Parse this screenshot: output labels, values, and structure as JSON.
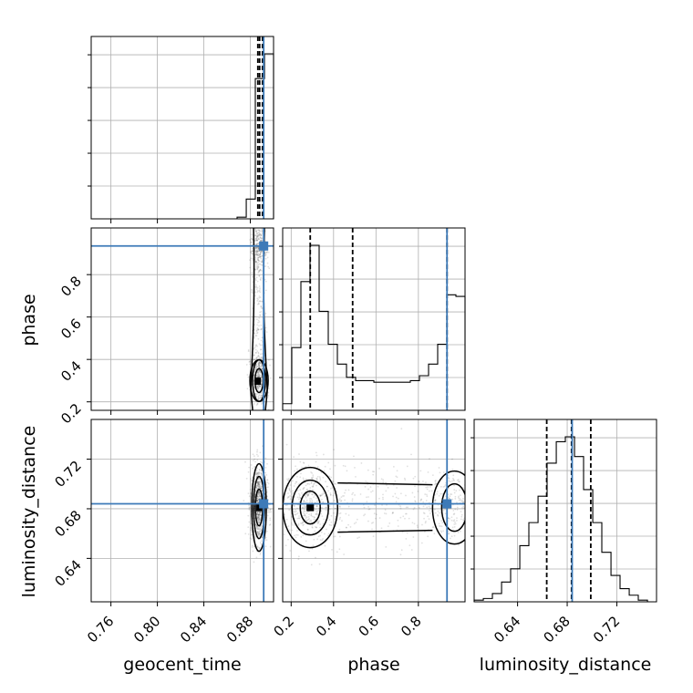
{
  "chart_data": {
    "type": "corner",
    "parameters": [
      "geocent_time",
      "phase",
      "luminosity_distance"
    ],
    "axes": {
      "geocent_time": {
        "range": [
          0.743,
          0.9
        ],
        "ticks": [
          0.76,
          0.8,
          0.84,
          0.88
        ],
        "tick_labels": [
          "0.76",
          "0.80",
          "0.84",
          "0.88"
        ]
      },
      "phase": {
        "range": [
          0.16,
          1.02
        ],
        "ticks": [
          0.2,
          0.4,
          0.6,
          0.8
        ],
        "tick_labels": [
          "0.2",
          "0.4",
          "0.6",
          "0.8"
        ]
      },
      "luminosity_distance": {
        "range": [
          0.605,
          0.752
        ],
        "ticks": [
          0.64,
          0.68,
          0.72
        ],
        "tick_labels": [
          "0.64",
          "0.68",
          "0.72"
        ]
      }
    },
    "truths": {
      "geocent_time": 0.8915,
      "phase": 0.935,
      "luminosity_distance": 0.684
    },
    "quantiles": {
      "geocent_time": [
        0.8865,
        0.888,
        0.8905
      ],
      "phase": [
        0.29,
        0.49,
        0.935
      ],
      "luminosity_distance": [
        0.6635,
        0.6835,
        0.699
      ]
    },
    "marginals": {
      "geocent_time": {
        "edges": [
          0.743,
          0.7509,
          0.7587,
          0.7666,
          0.7744,
          0.7823,
          0.7901,
          0.798,
          0.8058,
          0.8137,
          0.8215,
          0.8294,
          0.8372,
          0.8451,
          0.8529,
          0.8608,
          0.8686,
          0.8765,
          0.8843,
          0.8922,
          0.9
        ],
        "counts": [
          0,
          0,
          0,
          0,
          0,
          0,
          0,
          0,
          0,
          0,
          0,
          0,
          0,
          0,
          0,
          0,
          1,
          12,
          85,
          100
        ]
      },
      "phase": {
        "edges": [
          0.16,
          0.203,
          0.246,
          0.289,
          0.332,
          0.375,
          0.418,
          0.461,
          0.504,
          0.547,
          0.59,
          0.633,
          0.676,
          0.719,
          0.762,
          0.805,
          0.848,
          0.891,
          0.934,
          0.977,
          1.02
        ],
        "counts": [
          4,
          38,
          78,
          100,
          60,
          40,
          28,
          20,
          18,
          18,
          17,
          17,
          17,
          17,
          18,
          21,
          28,
          40,
          70,
          69
        ]
      },
      "luminosity_distance": {
        "edges": [
          0.605,
          0.6124,
          0.6197,
          0.6271,
          0.6344,
          0.6418,
          0.6491,
          0.6565,
          0.6638,
          0.6712,
          0.6785,
          0.6859,
          0.6932,
          0.7006,
          0.7079,
          0.7153,
          0.7226,
          0.73,
          0.7373,
          0.7447,
          0.752
        ],
        "counts": [
          1,
          2,
          5,
          12,
          20,
          34,
          48,
          64,
          84,
          97,
          100,
          88,
          68,
          48,
          30,
          16,
          8,
          4,
          1,
          0
        ]
      }
    },
    "grid": true,
    "scatter_color": "#000000"
  }
}
